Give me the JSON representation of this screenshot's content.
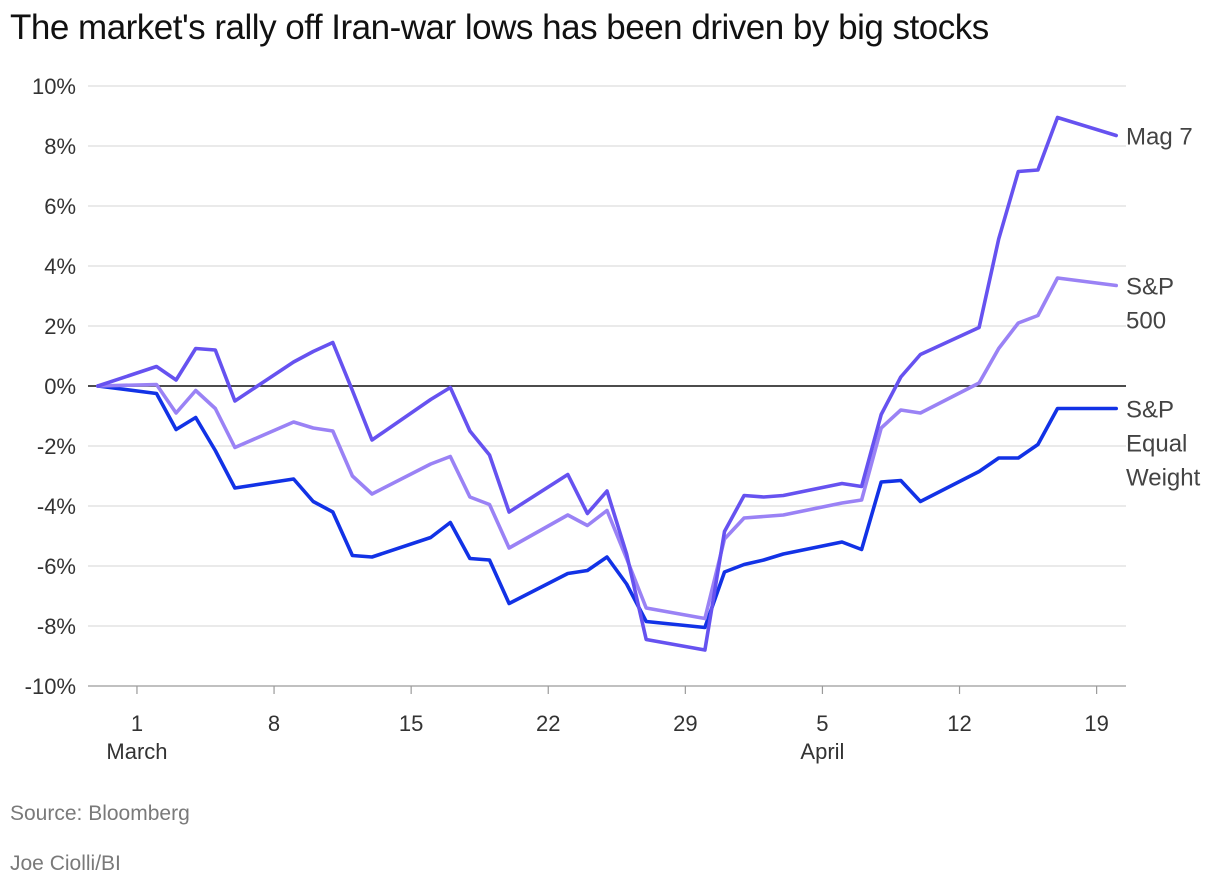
{
  "chart_data": {
    "type": "line",
    "title": "The market's rally off Iran-war lows has been driven by big stocks",
    "source": "Source: Bloomberg",
    "credit": "Joe Ciolli/BI",
    "xlabel": "",
    "ylabel": "",
    "ylim": [
      -10,
      10
    ],
    "y_ticks": [
      {
        "value": 10,
        "label": "10%"
      },
      {
        "value": 8,
        "label": "8%"
      },
      {
        "value": 6,
        "label": "6%"
      },
      {
        "value": 4,
        "label": "4%"
      },
      {
        "value": 2,
        "label": "2%"
      },
      {
        "value": 0,
        "label": "0%"
      },
      {
        "value": -2,
        "label": "-2%"
      },
      {
        "value": -4,
        "label": "-4%"
      },
      {
        "value": -6,
        "label": "-6%"
      },
      {
        "value": -8,
        "label": "-8%"
      },
      {
        "value": -10,
        "label": "-10%"
      }
    ],
    "x_range": [
      -2.5,
      50.5
    ],
    "x_ticks": [
      {
        "day": 0,
        "label": "1",
        "sublabel": "March"
      },
      {
        "day": 7,
        "label": "8",
        "sublabel": ""
      },
      {
        "day": 14,
        "label": "15",
        "sublabel": ""
      },
      {
        "day": 21,
        "label": "22",
        "sublabel": ""
      },
      {
        "day": 28,
        "label": "29",
        "sublabel": ""
      },
      {
        "day": 35,
        "label": "5",
        "sublabel": "April"
      },
      {
        "day": 42,
        "label": "12",
        "sublabel": ""
      },
      {
        "day": 49,
        "label": "19",
        "sublabel": ""
      }
    ],
    "grid": true,
    "series": [
      {
        "name": "Mag 7",
        "label_lines": [
          "Mag 7"
        ],
        "color": "#6652f0",
        "x": [
          -2,
          1,
          2,
          3,
          4,
          5,
          8,
          9,
          10,
          11,
          12,
          15,
          16,
          17,
          18,
          19,
          22,
          23,
          24,
          25,
          26,
          29,
          30,
          31,
          32,
          33,
          36,
          37,
          38,
          39,
          40,
          43,
          44,
          45,
          46,
          47,
          50
        ],
        "values": [
          0,
          0.65,
          0.2,
          1.25,
          1.2,
          -0.5,
          0.8,
          1.15,
          1.45,
          -0.15,
          -1.8,
          -0.45,
          -0.05,
          -1.5,
          -2.3,
          -4.2,
          -2.95,
          -4.25,
          -3.5,
          -5.6,
          -8.45,
          -8.8,
          -4.85,
          -3.65,
          -3.7,
          -3.65,
          -3.25,
          -3.35,
          -0.95,
          0.3,
          1.05,
          1.95,
          4.9,
          7.15,
          7.2,
          8.95,
          8.35
        ]
      },
      {
        "name": "S&P 500",
        "label_lines": [
          "S&P",
          "500"
        ],
        "color": "#9a82f5",
        "x": [
          -2,
          1,
          2,
          3,
          4,
          5,
          8,
          9,
          10,
          11,
          12,
          15,
          16,
          17,
          18,
          19,
          22,
          23,
          24,
          25,
          26,
          29,
          30,
          31,
          32,
          33,
          36,
          37,
          38,
          39,
          40,
          43,
          44,
          45,
          46,
          47,
          50
        ],
        "values": [
          0,
          0.05,
          -0.9,
          -0.15,
          -0.75,
          -2.05,
          -1.2,
          -1.4,
          -1.5,
          -3.0,
          -3.6,
          -2.6,
          -2.35,
          -3.7,
          -3.95,
          -5.4,
          -4.3,
          -4.65,
          -4.15,
          -5.75,
          -7.4,
          -7.75,
          -5.1,
          -4.4,
          -4.35,
          -4.3,
          -3.9,
          -3.8,
          -1.4,
          -0.8,
          -0.9,
          0.1,
          1.25,
          2.1,
          2.35,
          3.6,
          3.35
        ]
      },
      {
        "name": "S&P Equal Weight",
        "label_lines": [
          "S&P",
          "Equal",
          "Weight"
        ],
        "color": "#1232e6",
        "x": [
          -2,
          1,
          2,
          3,
          4,
          5,
          8,
          9,
          10,
          11,
          12,
          15,
          16,
          17,
          18,
          19,
          22,
          23,
          24,
          25,
          26,
          29,
          30,
          31,
          32,
          33,
          36,
          37,
          38,
          39,
          40,
          43,
          44,
          45,
          46,
          47,
          50
        ],
        "values": [
          0,
          -0.25,
          -1.45,
          -1.05,
          -2.15,
          -3.4,
          -3.1,
          -3.85,
          -4.2,
          -5.65,
          -5.7,
          -5.05,
          -4.55,
          -5.75,
          -5.8,
          -7.25,
          -6.25,
          -6.15,
          -5.7,
          -6.6,
          -7.85,
          -8.05,
          -6.2,
          -5.95,
          -5.8,
          -5.6,
          -5.2,
          -5.45,
          -3.2,
          -3.15,
          -3.85,
          -2.85,
          -2.4,
          -2.4,
          -1.95,
          -0.75,
          -0.75
        ]
      }
    ]
  }
}
